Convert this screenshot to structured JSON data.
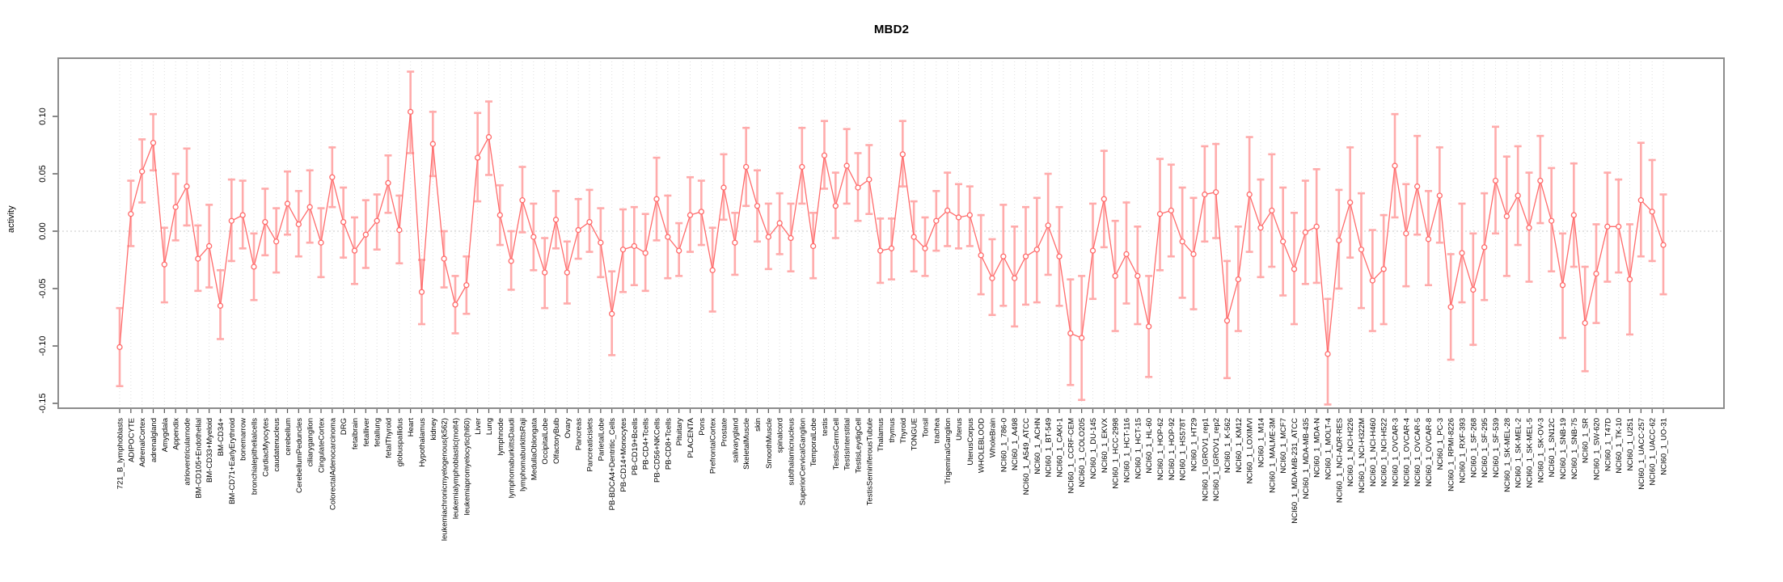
{
  "page": {
    "title": "MBD2",
    "y_axis_title": "activity"
  },
  "chart_data": {
    "type": "scatter",
    "title": "MBD2",
    "xlabel": "",
    "ylabel": "activity",
    "legend": null,
    "grid": "vertical-dotted-per-category",
    "zero_reference_line": true,
    "point_style": "open-circle-with-error-bars-connected-by-line",
    "ylim": [
      -0.154,
      0.151
    ],
    "yticks": [
      0.1,
      0.05,
      0.0,
      -0.05,
      -0.1,
      -0.15
    ],
    "ytick_labels": [
      "0.10",
      "0.05",
      "0.00",
      "-0.05",
      "-0.10",
      "-0.15"
    ],
    "style": {
      "point_color": "#ff6b6b",
      "line_color": "#ff6b6b",
      "errorbar_color": "#ffabab",
      "grid_color": "#dedede",
      "zero_line_color": "#c8c8c8",
      "box_color": "#8c8c8c",
      "tick_color": "#555555",
      "text_color": "#000000"
    },
    "categories": [
      "721_B_lymphoblasts",
      "ADIPOCYTE",
      "AdrenalCortex",
      "adrenalgland",
      "Amygdala",
      "Appendix",
      "atrioventricularnode",
      "BM-CD105+Endothelial",
      "BM-CD33+Myeloid",
      "BM-CD34+",
      "BM-CD71+EarlyErythroid",
      "bonemarrow",
      "bronchialepithelialcells",
      "CardiacMyocytes",
      "caudatenucleus",
      "cerebellum",
      "CerebellumPeduncles",
      "ciliaryganglion",
      "CingulateCortex",
      "ColorectalAdenocarcinoma",
      "DRG",
      "fetalbrain",
      "fetalliver",
      "fetallung",
      "fetalThyroid",
      "globuspallidus",
      "Heart",
      "Hypothalamus",
      "kidney",
      "leukemiachronicmyelogenous(k562)",
      "leukemialymphoblastic(molt4)",
      "leukemiapromyelocytic(hl60)",
      "Liver",
      "Lung",
      "lymphnode",
      "lymphomaburkittsDaudi",
      "lymphomaburkittsRaji",
      "MedullaOblongata",
      "OccipitalLobe",
      "OlfactoryBulb",
      "Ovary",
      "Pancreas",
      "Pancreaticislets",
      "ParietalLobe",
      "PB-BDCA4+Dentritic_Cells",
      "PB-CD14+Monocytes",
      "PB-CD19+Bcells",
      "PB-CD4+Tcells",
      "PB-CD56+NKCells",
      "PB-CD8+Tcells",
      "Pituitary",
      "PLACENTA",
      "Pons",
      "PrefrontalCortex",
      "Prostate",
      "salivarygland",
      "SkeletalMuscle",
      "skin",
      "SmoothMuscle",
      "spinalcord",
      "subthalamicnucleus",
      "SuperiorCervicalGanglion",
      "TemporalLobe",
      "testis",
      "TestisGermCell",
      "TestisInterstitial",
      "TestisLeydigCell",
      "TestisSeminiferousTubule",
      "Thalamus",
      "thymus",
      "Thyroid",
      "TONGUE",
      "Tonsil",
      "trachea",
      "TrigeminalGanglion",
      "Uterus",
      "UterusCorpus",
      "WHOLEBLOOD",
      "WholeBrain",
      "NCI60_1_786-0",
      "NCI60_1_A498",
      "NCI60_1_A549_ATCC",
      "NCI60_1_ACHN",
      "NCI60_1_BT-549",
      "NCI60_1_CAKI-1",
      "NCI60_1_CCRF-CEM",
      "NCI60_1_COLO205",
      "NCI60_1_DU-145",
      "NCI60_1_EKVX",
      "NCI60_1_HCC-2998",
      "NCI60_1_HCT-116",
      "NCI60_1_HCT-15",
      "NCI60_1_HL-60",
      "NCI60_1_HOP-62",
      "NCI60_1_HOP-92",
      "NCI60_1_HS578T",
      "NCI60_1_HT29",
      "NCI60_1_IGROV1_rep1",
      "NCI60_1_IGROV1_rep2",
      "NCI60_1_K-562",
      "NCI60_1_KM12",
      "NCI60_1_LOXIMVI",
      "NCI60_1_M14",
      "NCI60_1_MALME-3M",
      "NCI60_1_MCF7",
      "NCI60_1_MDA-MB-231_ATCC",
      "NCI60_1_MDA-MB-435",
      "NCI60_1_MDA-N",
      "NCI60_1_MOLT-4",
      "NCI60_1_NCI-ADR-RES",
      "NCI60_1_NCI-H226",
      "NCI60_1_NCI-H322M",
      "NCI60_1_NCI-H460",
      "NCI60_1_NCI-H522",
      "NCI60_1_OVCAR-3",
      "NCI60_1_OVCAR-4",
      "NCI60_1_OVCAR-5",
      "NCI60_1_OVCAR-8",
      "NCI60_1_PC-3",
      "NCI60_1_RPMI-8226",
      "NCI60_1_RXF-393",
      "NCI60_1_SF-268",
      "NCI60_1_SF-295",
      "NCI60_1_SF-539",
      "NCI60_1_SK-MEL-28",
      "NCI60_1_SK-MEL-2",
      "NCI60_1_SK-MEL-5",
      "NCI60_1_SK-OV-3",
      "NCI60_1_SN12C",
      "NCI60_1_SNB-19",
      "NCI60_1_SNB-75",
      "NCI60_1_SR",
      "NCI60_1_SW-620",
      "NCI60_1_T47D",
      "NCI60_1_TK-10",
      "NCI60_1_U251",
      "NCI60_1_UACC-257",
      "NCI60_1_UACC-62",
      "NCI60_1_UO-31"
    ],
    "series": [
      {
        "name": "activity",
        "values": [
          -0.101,
          0.015,
          0.052,
          0.077,
          -0.029,
          0.021,
          0.039,
          -0.024,
          -0.013,
          -0.065,
          0.009,
          0.014,
          -0.031,
          0.008,
          -0.009,
          0.024,
          0.006,
          0.021,
          -0.01,
          0.047,
          0.008,
          -0.017,
          -0.003,
          0.009,
          0.042,
          0.001,
          0.104,
          -0.053,
          0.076,
          -0.024,
          -0.064,
          -0.047,
          0.064,
          0.082,
          0.014,
          -0.026,
          0.027,
          -0.005,
          -0.036,
          0.01,
          -0.036,
          0.001,
          0.008,
          -0.01,
          -0.072,
          -0.016,
          -0.013,
          -0.019,
          0.028,
          -0.005,
          -0.017,
          0.014,
          0.017,
          -0.034,
          0.038,
          -0.01,
          0.056,
          0.022,
          -0.005,
          0.007,
          -0.006,
          0.056,
          -0.013,
          0.066,
          0.022,
          0.057,
          0.038,
          0.045,
          -0.017,
          -0.015,
          0.067,
          -0.005,
          -0.015,
          0.009,
          0.018,
          0.012,
          0.014,
          -0.021,
          -0.041,
          -0.022,
          -0.041,
          -0.022,
          -0.016,
          0.005,
          -0.022,
          -0.089,
          -0.093,
          -0.017,
          0.028,
          -0.039,
          -0.02,
          -0.039,
          -0.083,
          0.015,
          0.018,
          -0.009,
          -0.02,
          0.032,
          0.034,
          -0.078,
          -0.042,
          0.032,
          0.003,
          0.018,
          -0.009,
          -0.033,
          -0.001,
          0.004,
          -0.107,
          -0.008,
          0.025,
          -0.016,
          -0.043,
          -0.033,
          0.057,
          -0.002,
          0.039,
          -0.007,
          0.031,
          -0.066,
          -0.019,
          -0.051,
          -0.014,
          0.044,
          0.013,
          0.031,
          0.003,
          0.044,
          0.009,
          -0.047,
          0.014,
          -0.08,
          -0.037,
          0.004,
          0.004,
          -0.042,
          0.027,
          0.017,
          -0.012
        ],
        "ci_low": [
          -0.135,
          -0.013,
          0.025,
          0.053,
          -0.062,
          -0.008,
          0.005,
          -0.052,
          -0.049,
          -0.094,
          -0.026,
          -0.015,
          -0.06,
          -0.021,
          -0.036,
          -0.003,
          -0.022,
          -0.01,
          -0.04,
          0.021,
          -0.023,
          -0.046,
          -0.032,
          -0.016,
          0.016,
          -0.028,
          0.068,
          -0.081,
          0.048,
          -0.049,
          -0.089,
          -0.072,
          0.026,
          0.049,
          -0.012,
          -0.051,
          -0.001,
          -0.034,
          -0.067,
          -0.015,
          -0.063,
          -0.024,
          -0.018,
          -0.04,
          -0.108,
          -0.053,
          -0.047,
          -0.052,
          -0.008,
          -0.041,
          -0.039,
          -0.018,
          -0.012,
          -0.07,
          0.01,
          -0.038,
          0.022,
          -0.009,
          -0.033,
          -0.02,
          -0.035,
          0.024,
          -0.041,
          0.037,
          -0.006,
          0.024,
          0.009,
          0.015,
          -0.045,
          -0.042,
          0.039,
          -0.035,
          -0.039,
          -0.017,
          -0.013,
          -0.015,
          -0.013,
          -0.055,
          -0.073,
          -0.065,
          -0.083,
          -0.064,
          -0.062,
          -0.038,
          -0.065,
          -0.134,
          -0.147,
          -0.059,
          -0.014,
          -0.087,
          -0.063,
          -0.081,
          -0.127,
          -0.034,
          -0.022,
          -0.058,
          -0.068,
          -0.009,
          -0.006,
          -0.128,
          -0.087,
          -0.018,
          -0.04,
          -0.031,
          -0.056,
          -0.081,
          -0.046,
          -0.045,
          -0.151,
          -0.05,
          -0.023,
          -0.067,
          -0.087,
          -0.081,
          0.012,
          -0.048,
          -0.003,
          -0.047,
          -0.01,
          -0.112,
          -0.062,
          -0.099,
          -0.06,
          -0.002,
          -0.039,
          -0.012,
          -0.044,
          0.007,
          -0.035,
          -0.093,
          -0.031,
          -0.122,
          -0.08,
          -0.044,
          -0.036,
          -0.09,
          -0.022,
          -0.026,
          -0.055
        ],
        "ci_high": [
          -0.067,
          0.044,
          0.08,
          0.102,
          0.003,
          0.05,
          0.072,
          0.005,
          0.023,
          -0.034,
          0.045,
          0.044,
          -0.002,
          0.037,
          0.02,
          0.052,
          0.035,
          0.053,
          0.02,
          0.073,
          0.038,
          0.012,
          0.027,
          0.032,
          0.066,
          0.031,
          0.139,
          -0.025,
          0.104,
          0.0,
          -0.039,
          -0.022,
          0.103,
          0.113,
          0.04,
          0.0,
          0.056,
          0.024,
          -0.006,
          0.035,
          -0.009,
          0.028,
          0.036,
          0.02,
          -0.035,
          0.019,
          0.021,
          0.015,
          0.064,
          0.031,
          0.007,
          0.047,
          0.044,
          0.003,
          0.067,
          0.016,
          0.09,
          0.053,
          0.024,
          0.033,
          0.024,
          0.09,
          0.016,
          0.096,
          0.051,
          0.089,
          0.068,
          0.075,
          0.011,
          0.011,
          0.096,
          0.026,
          0.012,
          0.035,
          0.051,
          0.041,
          0.039,
          0.014,
          -0.007,
          0.023,
          0.004,
          0.021,
          0.029,
          0.05,
          0.021,
          -0.042,
          -0.039,
          0.024,
          0.07,
          0.009,
          0.025,
          0.004,
          -0.039,
          0.063,
          0.058,
          0.038,
          0.029,
          0.074,
          0.076,
          -0.026,
          0.004,
          0.082,
          0.045,
          0.067,
          0.038,
          0.016,
          0.044,
          0.054,
          -0.059,
          0.036,
          0.073,
          0.033,
          0.001,
          0.014,
          0.102,
          0.041,
          0.083,
          0.035,
          0.073,
          -0.02,
          0.024,
          -0.002,
          0.033,
          0.091,
          0.065,
          0.074,
          0.051,
          0.083,
          0.055,
          -0.002,
          0.059,
          -0.031,
          0.006,
          0.051,
          0.045,
          0.006,
          0.077,
          0.062,
          0.032
        ]
      }
    ]
  }
}
